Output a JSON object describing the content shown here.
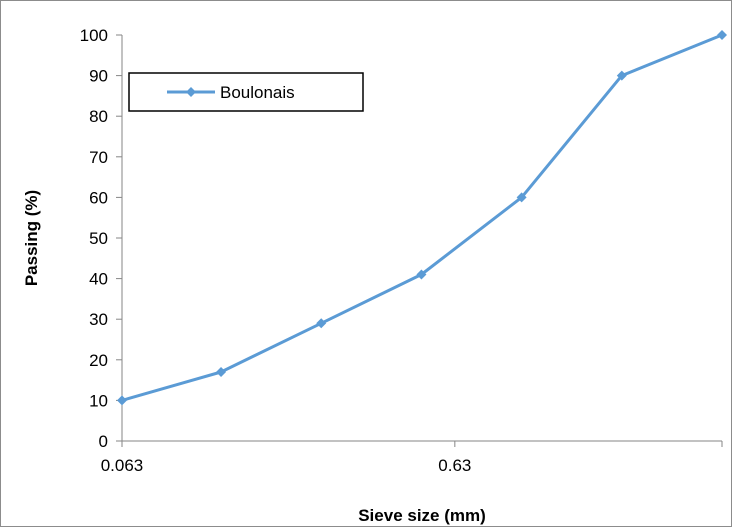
{
  "chart_data": {
    "type": "line",
    "title": "",
    "xlabel": "Sieve size (mm)",
    "ylabel": "Passing (%)",
    "x_scale": "log",
    "x_tick_labels": [
      "0.063",
      "0.63"
    ],
    "x_tick_values": [
      0.063,
      0.63
    ],
    "ylim": [
      0,
      100
    ],
    "y_ticks": [
      0,
      10,
      20,
      30,
      40,
      50,
      60,
      70,
      80,
      90,
      100
    ],
    "grid": false,
    "legend": {
      "placement": "top-left",
      "entries": [
        "Boulonais"
      ]
    },
    "series": [
      {
        "name": "Boulonais",
        "color": "#5b9bd5",
        "marker": "diamond",
        "points": [
          {
            "x": 0.063,
            "y": 10
          },
          {
            "x": 0.125,
            "y": 17
          },
          {
            "x": 0.25,
            "y": 29
          },
          {
            "x": 0.5,
            "y": 41
          },
          {
            "x": 1,
            "y": 60
          },
          {
            "x": 2,
            "y": 90
          },
          {
            "x": 4,
            "y": 100
          }
        ]
      }
    ]
  }
}
